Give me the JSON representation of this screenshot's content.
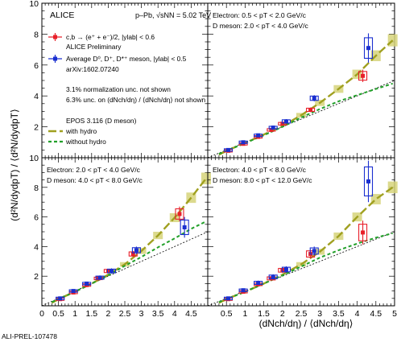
{
  "watermark": "ALI-PREL-107478",
  "y_axis_label": "(d²N/dydpT) / ⟨d²N/dydpT⟩",
  "x_axis_label": "(dNch/dη) / ⟨dNch/dη⟩",
  "legend": {
    "collaboration": "ALICE",
    "system": "p–Pb, √sNN = 5.02 TeV",
    "electron_entry": "c,b → (e⁺ + e⁻)/2, |ylab| < 0.6",
    "electron_note": "ALICE Preliminary",
    "dmeson_entry": "Average D⁰, D⁺, D*⁺ meson, |ylab| < 0.5",
    "dmeson_note": "arXiv:1602.07240",
    "unc_line1": "3.1% normalization unc. not shown",
    "unc_line2": "6.3% unc. on (dNch/dη) / ⟨dNch/dη⟩  not shown",
    "model_title": "EPOS 3.116 (D meson)",
    "hydro_label": "with hydro",
    "nohydro_label": "without hydro"
  },
  "colors": {
    "electron": "#e8202a",
    "dmeson": "#1a2fd0",
    "hydro": "#a0a020",
    "hydro_band": "#d6d47a",
    "nohydro": "#22a02a",
    "diagonal": "#000000"
  },
  "chart_data": [
    {
      "type": "scatter",
      "panel": "top-left",
      "xlim": [
        0,
        5
      ],
      "ylim": [
        0,
        10
      ],
      "yticks": [
        2,
        4,
        6,
        8,
        10
      ],
      "xticks": [],
      "grid": false,
      "series": [],
      "annotations": []
    },
    {
      "type": "scatter",
      "panel": "top-right",
      "xlim": [
        0,
        5
      ],
      "ylim": [
        0,
        10
      ],
      "yticks": [],
      "xticks": [],
      "grid": false,
      "annotations": [
        "Electron: 0.5 < pT < 2.0 GeV/c",
        "D meson: 2.0 < pT < 4.0 GeV/c"
      ],
      "series": [
        {
          "key": "electron",
          "x": [
            0.55,
            0.95,
            1.35,
            1.7,
            2.0,
            2.75,
            4.15
          ],
          "y": [
            0.45,
            0.9,
            1.35,
            1.8,
            2.2,
            3.1,
            5.3
          ],
          "yerr": [
            0.05,
            0.07,
            0.08,
            0.1,
            0.12,
            0.15,
            0.4
          ]
        },
        {
          "key": "dmeson",
          "x": [
            0.55,
            0.95,
            1.35,
            1.75,
            2.1,
            2.85,
            4.3
          ],
          "y": [
            0.5,
            1.0,
            1.45,
            1.95,
            2.35,
            3.85,
            7.1
          ],
          "yerr": [
            0.06,
            0.08,
            0.1,
            0.12,
            0.15,
            0.2,
            0.95
          ]
        },
        {
          "key": "hydro",
          "x": [
            0.3,
            0.6,
            1.0,
            1.5,
            2.0,
            2.5,
            3.0,
            3.5,
            4.0,
            4.5,
            4.95
          ],
          "y": [
            0.2,
            0.55,
            0.95,
            1.5,
            2.05,
            2.75,
            3.55,
            4.45,
            5.4,
            6.6,
            7.6
          ]
        },
        {
          "key": "nohydro",
          "x": [
            0.3,
            0.6,
            1.0,
            1.5,
            2.0,
            2.5,
            3.0,
            3.5,
            4.0,
            4.5,
            4.95
          ],
          "y": [
            0.25,
            0.55,
            0.95,
            1.45,
            2.0,
            2.6,
            3.15,
            3.65,
            4.05,
            4.45,
            4.8
          ]
        }
      ]
    },
    {
      "type": "scatter",
      "panel": "bottom-left",
      "xlim": [
        0,
        5
      ],
      "ylim": [
        0,
        10
      ],
      "yticks": [
        2,
        4,
        6,
        8,
        10
      ],
      "xticks": [
        "0",
        "0.5",
        "1",
        "1.5",
        "2",
        "2.5",
        "3",
        "3.5",
        "4",
        "4.5"
      ],
      "grid": false,
      "annotations": [
        "Electron: 2.0 < pT < 4.0 GeV/c",
        "D meson: 4.0 < pT < 8.0 GeV/c"
      ],
      "series": [
        {
          "key": "electron",
          "x": [
            0.55,
            0.95,
            1.35,
            1.7,
            2.0,
            2.75,
            4.15
          ],
          "y": [
            0.45,
            0.9,
            1.4,
            1.85,
            2.35,
            3.5,
            6.2
          ],
          "yerr": [
            0.06,
            0.08,
            0.1,
            0.12,
            0.15,
            0.2,
            0.5
          ]
        },
        {
          "key": "dmeson",
          "x": [
            0.55,
            0.95,
            1.35,
            1.75,
            2.1,
            2.85,
            4.3
          ],
          "y": [
            0.5,
            1.0,
            1.5,
            1.9,
            2.35,
            3.75,
            5.3
          ],
          "yerr": [
            0.08,
            0.1,
            0.12,
            0.15,
            0.18,
            0.25,
            0.7
          ]
        },
        {
          "key": "hydro",
          "x": [
            0.3,
            0.6,
            1.0,
            1.5,
            2.0,
            2.5,
            3.0,
            3.5,
            4.0,
            4.5,
            4.95
          ],
          "y": [
            0.2,
            0.55,
            0.95,
            1.5,
            2.1,
            2.8,
            3.7,
            4.75,
            5.95,
            7.3,
            8.6
          ]
        },
        {
          "key": "nohydro",
          "x": [
            0.3,
            0.6,
            1.0,
            1.5,
            2.0,
            2.5,
            3.0,
            3.5,
            4.0,
            4.5,
            4.95
          ],
          "y": [
            0.25,
            0.55,
            0.95,
            1.5,
            2.05,
            2.7,
            3.3,
            3.95,
            4.55,
            5.2,
            5.7
          ]
        }
      ]
    },
    {
      "type": "scatter",
      "panel": "bottom-right",
      "xlim": [
        0,
        5
      ],
      "ylim": [
        0,
        10
      ],
      "yticks": [],
      "xticks": [
        "0.5",
        "1",
        "1.5",
        "2",
        "2.5",
        "3",
        "3.5",
        "4",
        "4.5",
        "5"
      ],
      "grid": false,
      "annotations": [
        "Electron: 4.0 < pT < 8.0 GeV/c",
        "D meson: 8.0 < pT < 12.0 GeV/c"
      ],
      "series": [
        {
          "key": "electron",
          "x": [
            0.55,
            0.95,
            1.35,
            1.7,
            2.0,
            2.75,
            4.15
          ],
          "y": [
            0.45,
            0.95,
            1.45,
            1.85,
            2.4,
            3.5,
            4.95
          ],
          "yerr": [
            0.08,
            0.1,
            0.12,
            0.15,
            0.18,
            0.3,
            0.8
          ]
        },
        {
          "key": "dmeson",
          "x": [
            0.55,
            0.95,
            1.35,
            1.75,
            2.1,
            2.85,
            4.3
          ],
          "y": [
            0.5,
            1.05,
            1.55,
            1.95,
            2.45,
            3.7,
            8.4
          ],
          "yerr": [
            0.1,
            0.12,
            0.15,
            0.18,
            0.22,
            0.3,
            1.4
          ]
        },
        {
          "key": "hydro",
          "x": [
            0.3,
            0.6,
            1.0,
            1.5,
            2.0,
            2.5,
            3.0,
            3.5,
            4.0,
            4.5,
            4.95
          ],
          "y": [
            0.2,
            0.55,
            0.95,
            1.5,
            2.1,
            2.8,
            3.65,
            4.7,
            6.0,
            7.2,
            8.0
          ]
        },
        {
          "key": "nohydro",
          "x": [
            0.3,
            0.6,
            1.0,
            1.5,
            2.0,
            2.5,
            3.0,
            3.5,
            4.0,
            4.5,
            4.95
          ],
          "y": [
            0.25,
            0.55,
            0.95,
            1.5,
            2.05,
            2.65,
            3.25,
            3.75,
            4.2,
            4.6,
            4.9
          ]
        }
      ]
    }
  ]
}
